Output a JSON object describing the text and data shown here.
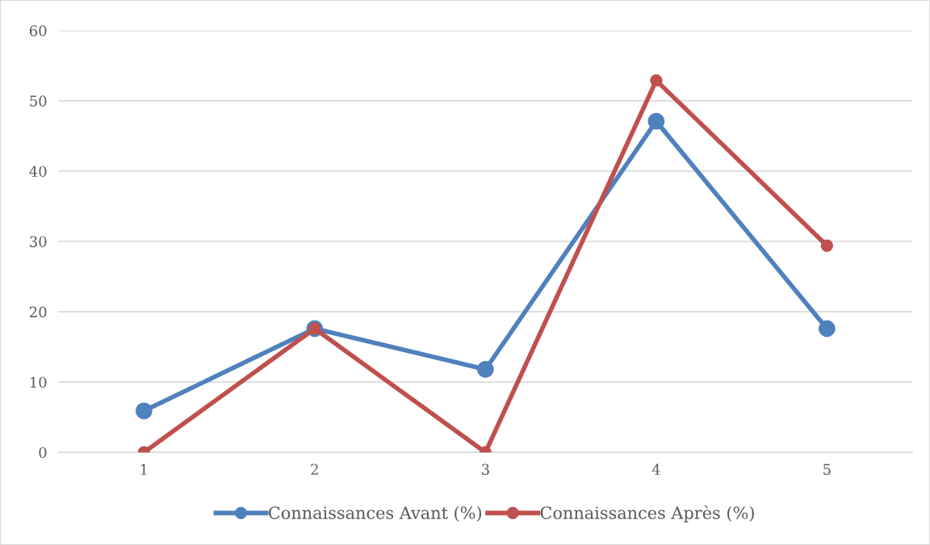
{
  "chart_data": {
    "type": "line",
    "categories": [
      "1",
      "2",
      "3",
      "4",
      "5"
    ],
    "series": [
      {
        "name": "Connaissances Avant (%)",
        "color": "#4f81bd",
        "values": [
          5.9,
          17.6,
          11.8,
          47.1,
          17.6
        ]
      },
      {
        "name": "Connaissances Après (%)",
        "color": "#c0504d",
        "values": [
          0,
          17.6,
          0,
          52.9,
          29.4
        ]
      }
    ],
    "ylim": [
      0,
      60
    ],
    "yticks": [
      0,
      10,
      20,
      30,
      40,
      50,
      60
    ],
    "grid": "y",
    "legend": "bottom",
    "marker": "circle",
    "line_style": "solid"
  }
}
